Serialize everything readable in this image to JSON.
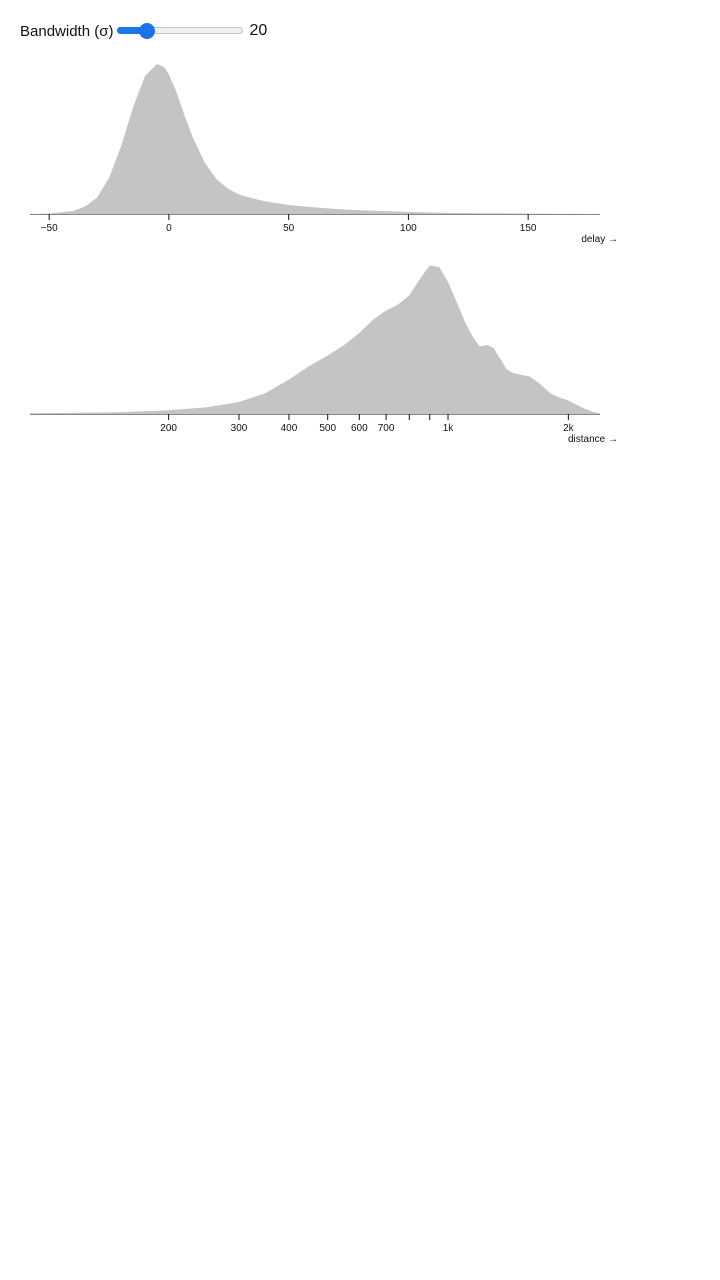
{
  "control": {
    "label": "Bandwidth (σ)",
    "value": 20,
    "min": 0,
    "max": 100,
    "value_text": "20"
  },
  "colors": {
    "area": "#c4c4c4",
    "axis": "#111111",
    "slider_accent": "#1a73e8"
  },
  "chart_data": [
    {
      "type": "area",
      "title": "",
      "xlabel": "delay →",
      "ylabel": "",
      "scale": "linear",
      "xlim": [
        -58,
        180
      ],
      "ticks": [
        -50,
        0,
        50,
        100,
        150
      ],
      "tick_labels": [
        "−50",
        "0",
        "50",
        "100",
        "150"
      ],
      "x": [
        -58,
        -50,
        -40,
        -35,
        -30,
        -25,
        -20,
        -15,
        -10,
        -5,
        -2,
        0,
        3,
        6,
        10,
        15,
        20,
        25,
        30,
        40,
        50,
        60,
        70,
        80,
        90,
        100,
        110,
        120,
        130,
        140,
        150,
        160,
        170,
        180
      ],
      "y": [
        0.0,
        0.003,
        0.02,
        0.05,
        0.11,
        0.24,
        0.45,
        0.71,
        0.92,
        1.0,
        0.98,
        0.93,
        0.82,
        0.68,
        0.51,
        0.34,
        0.23,
        0.165,
        0.125,
        0.085,
        0.06,
        0.045,
        0.033,
        0.025,
        0.019,
        0.014,
        0.01,
        0.007,
        0.005,
        0.004,
        0.003,
        0.002,
        0.001,
        0.0
      ]
    },
    {
      "type": "area",
      "title": "",
      "xlabel": "distance →",
      "ylabel": "",
      "scale": "log",
      "xlim": [
        90,
        2400
      ],
      "ticks": [
        200,
        300,
        400,
        500,
        600,
        700,
        800,
        900,
        1000,
        2000
      ],
      "tick_labels": [
        "200",
        "300",
        "400",
        "500",
        "600",
        "700",
        "",
        "",
        "1k",
        "2k"
      ],
      "x": [
        90,
        150,
        200,
        250,
        300,
        350,
        400,
        450,
        500,
        550,
        600,
        650,
        700,
        750,
        800,
        850,
        900,
        950,
        1000,
        1050,
        1100,
        1150,
        1200,
        1250,
        1300,
        1350,
        1400,
        1450,
        1500,
        1600,
        1700,
        1800,
        1900,
        2000,
        2100,
        2200,
        2300,
        2400
      ],
      "y": [
        0.005,
        0.012,
        0.025,
        0.045,
        0.08,
        0.14,
        0.23,
        0.32,
        0.39,
        0.46,
        0.54,
        0.63,
        0.69,
        0.73,
        0.79,
        0.9,
        0.99,
        0.98,
        0.88,
        0.75,
        0.62,
        0.52,
        0.45,
        0.46,
        0.44,
        0.37,
        0.3,
        0.275,
        0.265,
        0.25,
        0.2,
        0.14,
        0.11,
        0.09,
        0.06,
        0.035,
        0.015,
        0.004
      ]
    }
  ]
}
